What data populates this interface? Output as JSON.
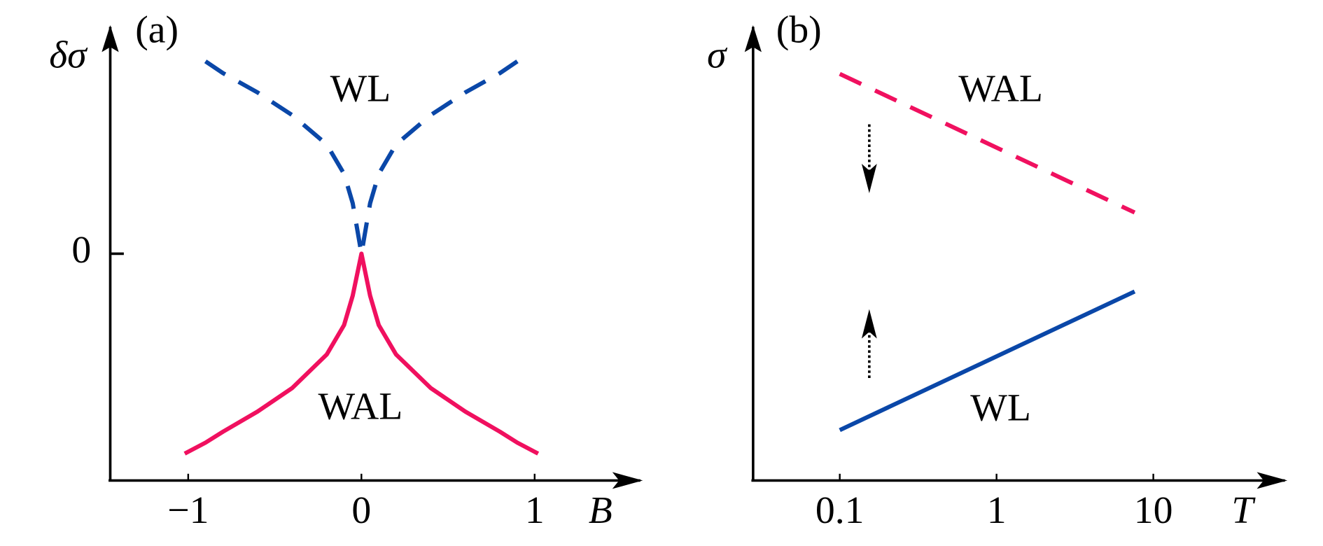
{
  "chart_data": [
    {
      "type": "line",
      "panel_label": "(a)",
      "xlabel": "B",
      "ylabel": "δσ",
      "x": [
        -1.02,
        -0.9,
        -0.8,
        -0.6,
        -0.4,
        -0.2,
        -0.1,
        -0.05,
        0,
        0.05,
        0.1,
        0.2,
        0.4,
        0.6,
        0.8,
        0.9,
        1.02
      ],
      "series": [
        {
          "name": "WL",
          "color": "#0a47a8",
          "dashed": true,
          "values": [
            null,
            2.29,
            2.15,
            1.92,
            1.65,
            1.3,
            0.95,
            0.6,
            0,
            0.6,
            0.95,
            1.3,
            1.65,
            1.92,
            2.15,
            2.29,
            null
          ]
        },
        {
          "name": "WAL",
          "color": "#f0105f",
          "dashed": false,
          "values": [
            -2.38,
            -2.25,
            -2.12,
            -1.88,
            -1.6,
            -1.2,
            -0.85,
            -0.5,
            0,
            -0.5,
            -0.85,
            -1.2,
            -1.6,
            -1.88,
            -2.12,
            -2.25,
            -2.38
          ]
        }
      ],
      "annotations": [
        "WL",
        "WAL"
      ],
      "xlim": [
        -1.45,
        1.61
      ],
      "xticks": [
        {
          "value": -1,
          "label": "−1"
        },
        0,
        1
      ],
      "ylim": [
        -2.7,
        2.7
      ],
      "yticks": [
        0
      ]
    },
    {
      "type": "line",
      "panel_label": "(b)",
      "xlabel": "T",
      "ylabel": "σ",
      "xscale": "log",
      "x": [
        0.1,
        7.6
      ],
      "series": [
        {
          "name": "WAL",
          "color": "#f0105f",
          "dashed": true,
          "values": [
            4.84,
            3.19
          ]
        },
        {
          "name": "WL",
          "color": "#0a47a8",
          "dashed": false,
          "values": [
            0.6,
            2.25
          ]
        }
      ],
      "annotations": [
        "WAL",
        "WL"
      ],
      "xlim": [
        0.028,
        69
      ],
      "xticks": [
        0.1,
        1,
        10
      ],
      "ylim": [
        0,
        5.4
      ]
    }
  ]
}
